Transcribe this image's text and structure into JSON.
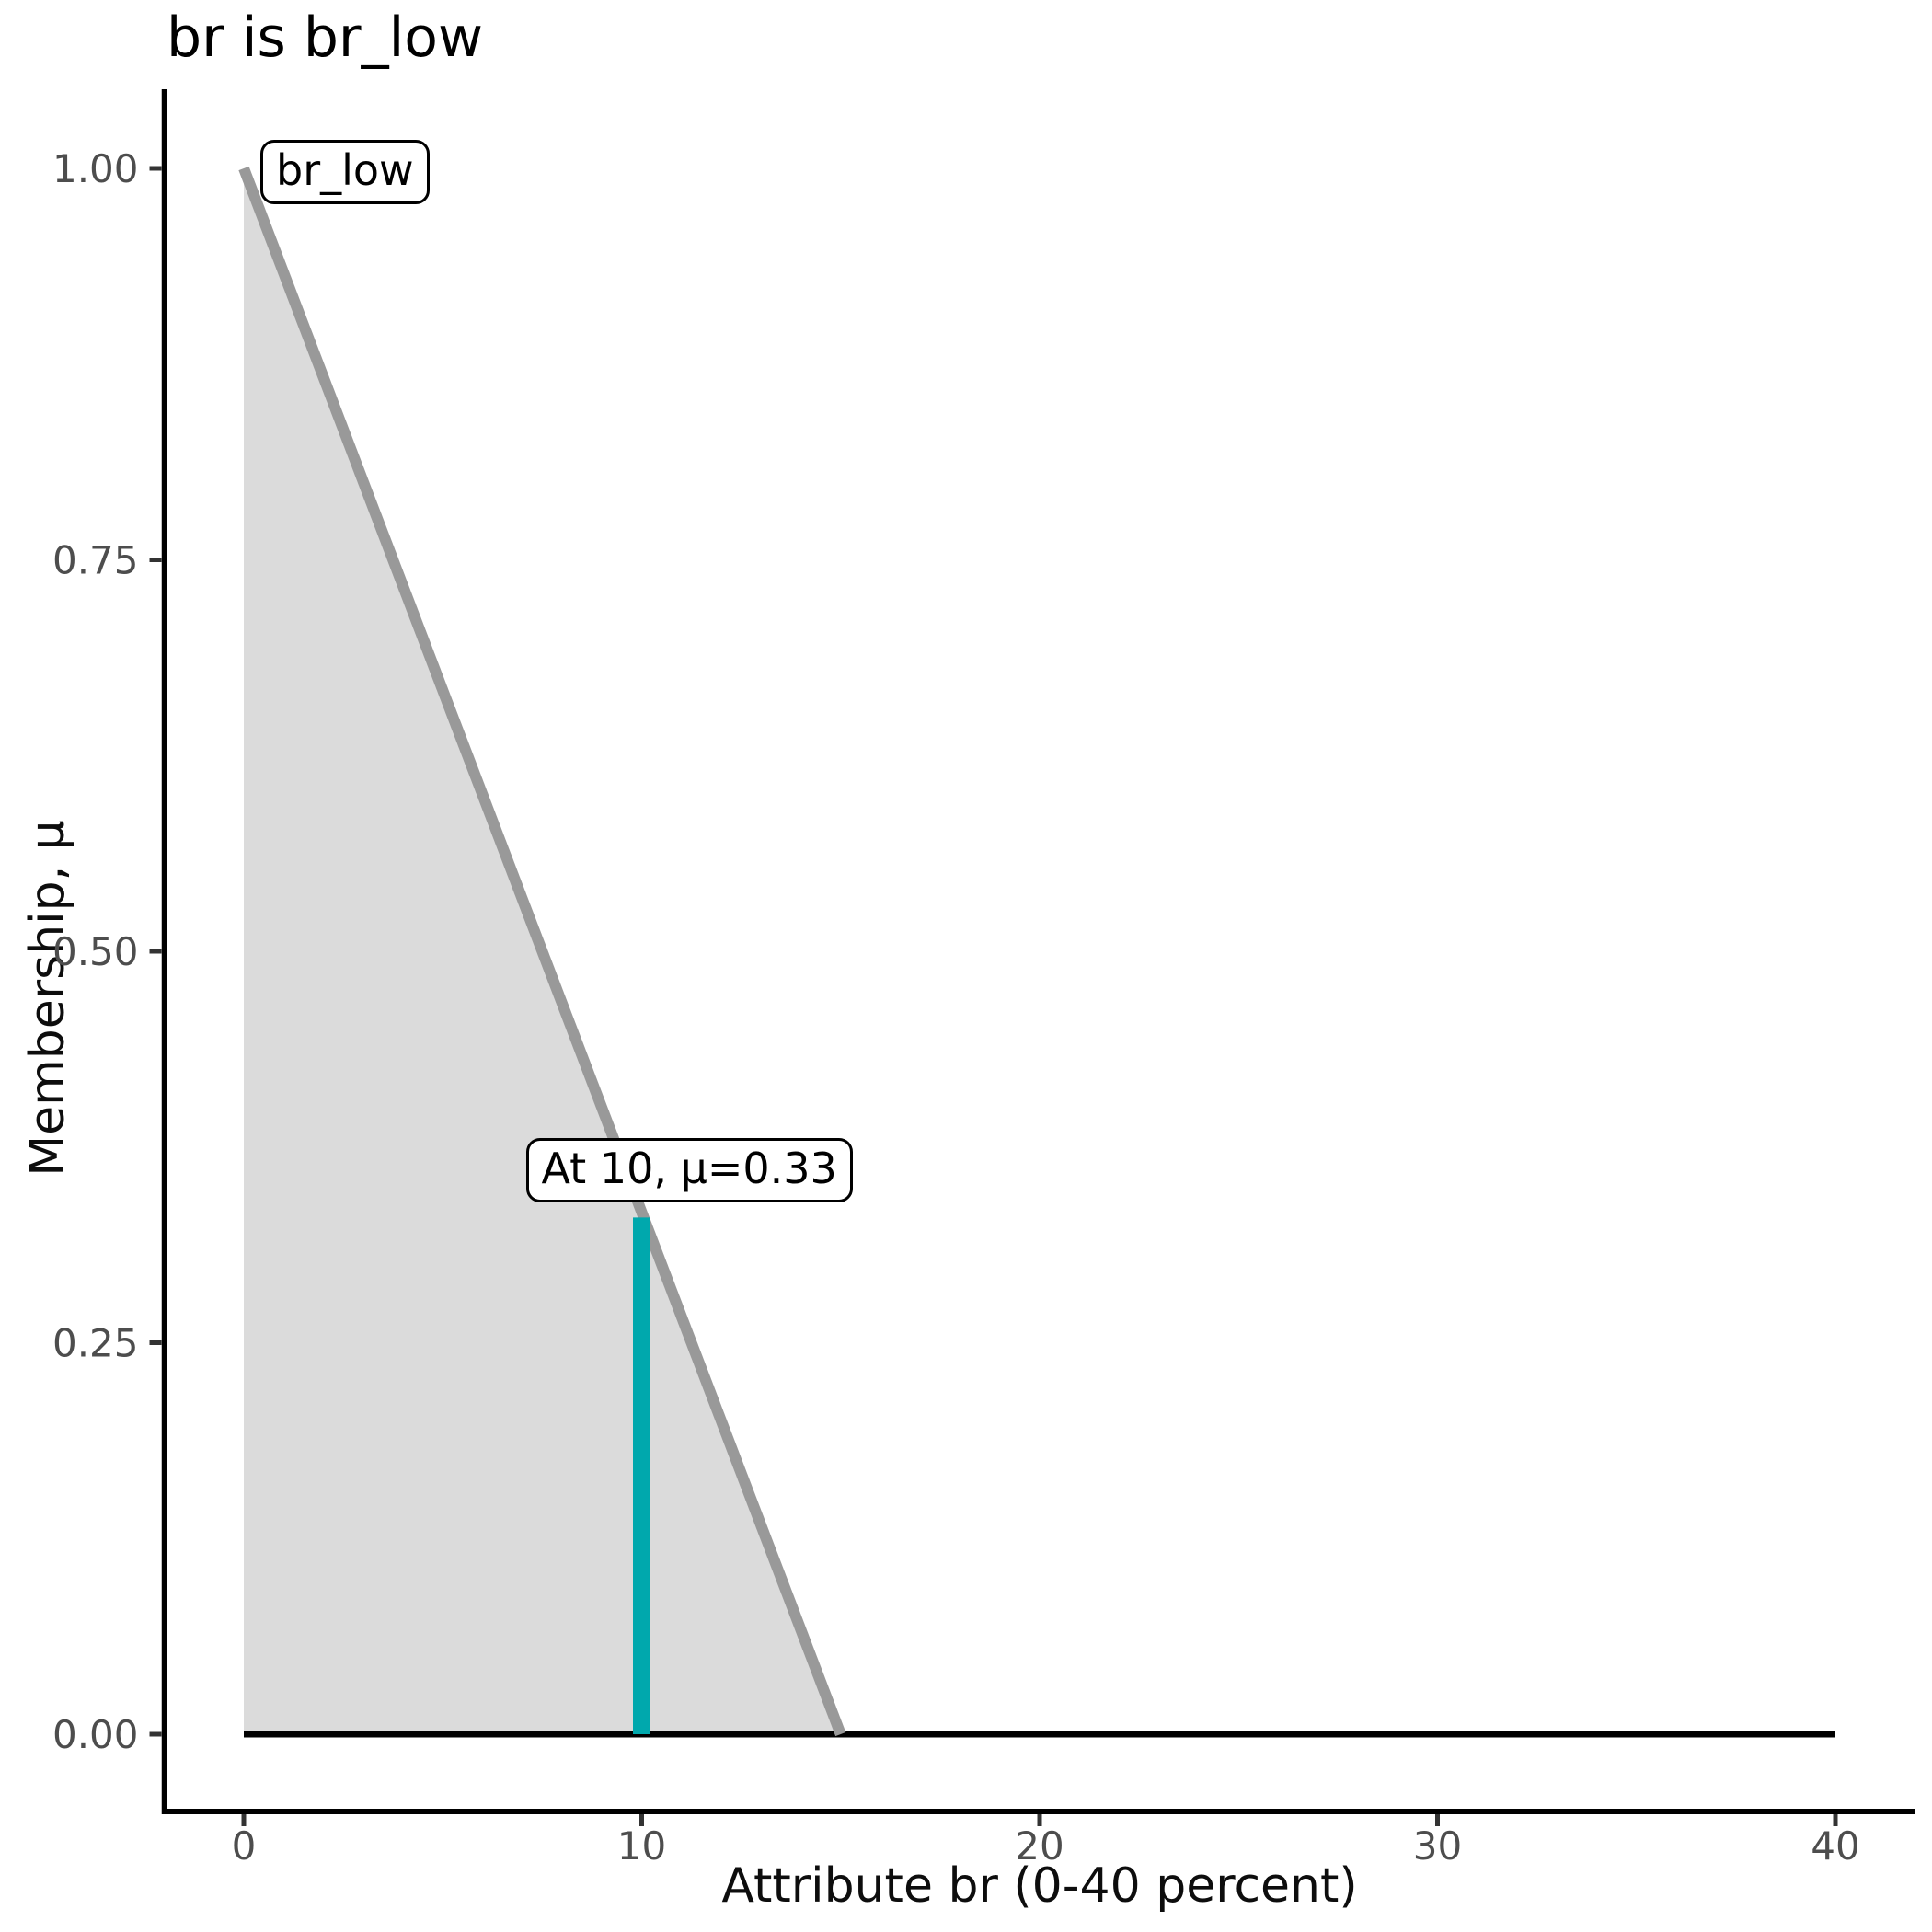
{
  "chart_data": {
    "type": "area",
    "title": "br is br_low",
    "xlabel": "Attribute br (0-40 percent)",
    "ylabel": "Membership, μ",
    "xlim": [
      0,
      40
    ],
    "ylim": [
      0,
      1
    ],
    "grid": "off",
    "x_ticks": {
      "values": [
        0,
        10,
        20,
        30,
        40
      ],
      "labels": [
        "0",
        "10",
        "20",
        "30",
        "40"
      ]
    },
    "y_ticks": {
      "values": [
        0,
        0.25,
        0.5,
        0.75,
        1.0
      ],
      "labels": [
        "0.00",
        "0.25",
        "0.50",
        "0.75",
        "1.00"
      ]
    },
    "membership_function": {
      "name": "br_low",
      "points": [
        [
          0,
          1.0
        ],
        [
          15,
          0.0
        ]
      ],
      "line_color": "#999999",
      "fill_color": "#dbdbdb"
    },
    "baseline": {
      "points": [
        [
          0,
          0
        ],
        [
          40,
          0
        ]
      ],
      "color": "#000000"
    },
    "highlight": {
      "x": 10,
      "mu": 0.33,
      "color": "#00a8ad"
    },
    "annotations": [
      {
        "label": "br_low",
        "x": 0,
        "mu": 1.0
      },
      {
        "label": "At 10, μ=0.33",
        "x": 10,
        "mu": 0.33
      }
    ],
    "colors": {
      "tick_label": "#4d4d4d",
      "axis": "#000000",
      "tick_mark": "#333333"
    }
  }
}
